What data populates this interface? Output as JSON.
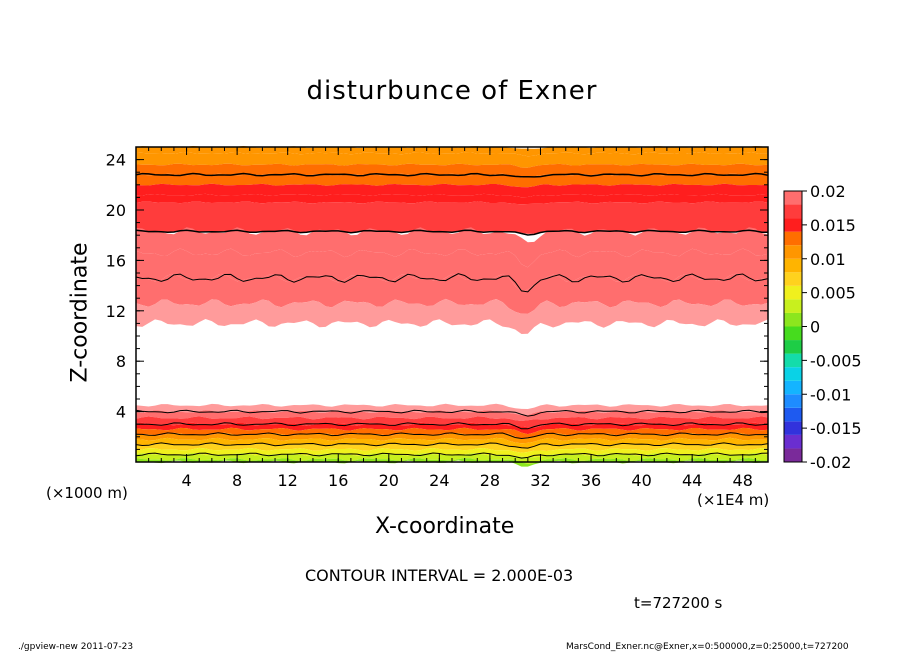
{
  "title": "disturbunce of Exner",
  "xlabel": "X-coordinate",
  "ylabel": "Z-coordinate",
  "x_unit_note": "(×1000 m)",
  "x_scale_note": "(×1E4 m)",
  "contour_note": "CONTOUR INTERVAL = 2.000E-03",
  "time_note": "t=727200 s",
  "footer_left": "./gpview-new   2011-07-23",
  "footer_right": "MarsCond_Exner.nc@Exner,x=0:500000,z=0:25000,t=727200",
  "chart_data": {
    "type": "heatmap",
    "title": "disturbunce of Exner",
    "xlabel": "X-coordinate",
    "ylabel": "Z-coordinate",
    "xlim": [
      0,
      50
    ],
    "ylim": [
      0,
      25
    ],
    "x_ticks": [
      4,
      8,
      12,
      16,
      20,
      24,
      28,
      32,
      36,
      40,
      44,
      48
    ],
    "y_ticks": [
      4,
      8,
      12,
      16,
      20,
      24
    ],
    "colorbar": {
      "levels": [
        -0.02,
        -0.018,
        -0.016,
        -0.014,
        -0.012,
        -0.01,
        -0.008,
        -0.006,
        -0.004,
        -0.002,
        0,
        0.002,
        0.004,
        0.006,
        0.008,
        0.01,
        0.012,
        0.014,
        0.016,
        0.018,
        0.02
      ],
      "labels": [
        "0.02",
        "0.015",
        "0.01",
        "0.005",
        "0",
        "-0.005",
        "-0.01",
        "-0.015",
        "-0.02"
      ],
      "label_values": [
        0.02,
        0.015,
        0.01,
        0.005,
        0,
        -0.005,
        -0.01,
        -0.015,
        -0.02
      ],
      "colors": [
        "#7a2a9a",
        "#6a2ed0",
        "#3232dc",
        "#1e5af0",
        "#1e8cff",
        "#14b4ff",
        "#0ad2e6",
        "#14dcaa",
        "#1ecd46",
        "#46dc1e",
        "#8ce61e",
        "#c8f01e",
        "#f0f01e",
        "#ffd21e",
        "#ffb400",
        "#ff9600",
        "#ff6e00",
        "#ff1e1e",
        "#ff3c3c",
        "#ff6e6e",
        "#ff9b9b"
      ]
    },
    "bands": {
      "description_levels": "value band (lower bound) per region from top of domain to bottom",
      "upper_region": [
        {
          "z_top": 25.0,
          "z_bottom": 24.5,
          "value": 0.01
        },
        {
          "z_top": 24.5,
          "z_bottom": 23.6,
          "value": 0.01
        },
        {
          "z_top": 23.6,
          "z_bottom": 22.8,
          "value": 0.012
        },
        {
          "z_top": 22.8,
          "z_bottom": 22.0,
          "value": 0.012
        },
        {
          "z_top": 22.0,
          "z_bottom": 21.2,
          "value": 0.014
        },
        {
          "z_top": 21.2,
          "z_bottom": 20.6,
          "value": 0.014
        },
        {
          "z_top": 20.6,
          "z_bottom": 18.3,
          "value": 0.016
        },
        {
          "z_top": 18.3,
          "z_bottom": 16.6,
          "value": 0.018
        },
        {
          "z_top": 16.6,
          "z_bottom": 14.6,
          "value": 0.018
        },
        {
          "z_top": 14.6,
          "z_bottom": 12.6,
          "value": 0.018
        },
        {
          "z_top": 12.6,
          "z_bottom": 11.0,
          "value": 0.02
        }
      ],
      "lower_region": [
        {
          "z_top": 4.5,
          "z_bottom": 4.0,
          "value": 0.02
        },
        {
          "z_top": 4.0,
          "z_bottom": 3.5,
          "value": 0.018
        },
        {
          "z_top": 3.5,
          "z_bottom": 3.0,
          "value": 0.016
        },
        {
          "z_top": 3.0,
          "z_bottom": 2.6,
          "value": 0.014
        },
        {
          "z_top": 2.6,
          "z_bottom": 2.2,
          "value": 0.012
        },
        {
          "z_top": 2.2,
          "z_bottom": 1.8,
          "value": 0.01
        },
        {
          "z_top": 1.8,
          "z_bottom": 1.4,
          "value": 0.008
        },
        {
          "z_top": 1.4,
          "z_bottom": 1.0,
          "value": 0.006
        },
        {
          "z_top": 1.0,
          "z_bottom": 0.6,
          "value": 0.004
        },
        {
          "z_top": 0.6,
          "z_bottom": 0.2,
          "value": 0.002
        },
        {
          "z_top": 0.2,
          "z_bottom": 0.0,
          "value": 0.0
        }
      ],
      "blank_region": [
        4.5,
        11.0
      ]
    }
  }
}
